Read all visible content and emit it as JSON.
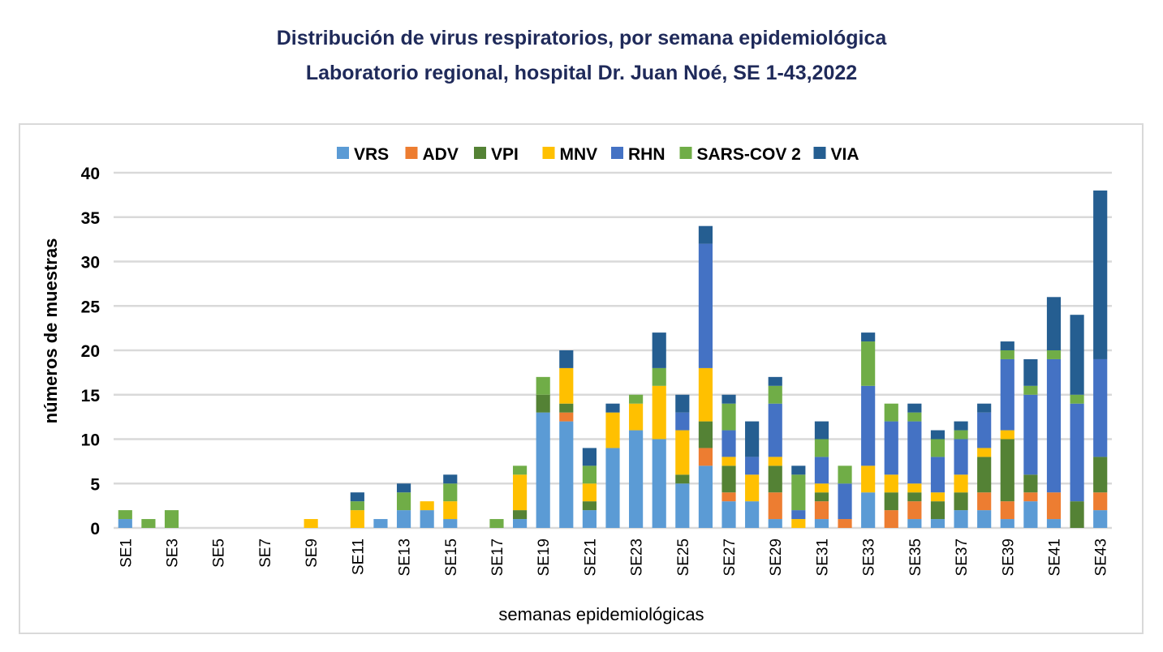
{
  "chart_data": {
    "type": "bar",
    "stacked": true,
    "title": "Distribución de virus respiratorios, por semana epidemiológica",
    "subtitle": "Laboratorio regional, hospital Dr. Juan Noé, SE 1-43,2022",
    "xlabel": "semanas epidemiológicas",
    "ylabel": "números de muestras",
    "ylim": [
      0,
      40
    ],
    "yticks": [
      0,
      5,
      10,
      15,
      20,
      25,
      30,
      35,
      40
    ],
    "grid": true,
    "legend_position": "top",
    "categories": [
      "SE1",
      "SE2",
      "SE3",
      "SE4",
      "SE5",
      "SE6",
      "SE7",
      "SE8",
      "SE9",
      "SE10",
      "SE11",
      "SE12",
      "SE13",
      "SE14",
      "SE15",
      "SE16",
      "SE17",
      "SE18",
      "SE19",
      "SE20",
      "SE21",
      "SE22",
      "SE23",
      "SE24",
      "SE25",
      "SE26",
      "SE27",
      "SE28",
      "SE29",
      "SE30",
      "SE31",
      "SE32",
      "SE33",
      "SE34",
      "SE35",
      "SE36",
      "SE37",
      "SE38",
      "SE39",
      "SE40",
      "SE41",
      "SE42",
      "SE43"
    ],
    "series": [
      {
        "name": "VRS",
        "color": "#5b9bd5",
        "values": [
          1,
          0,
          0,
          0,
          0,
          0,
          0,
          0,
          0,
          0,
          0,
          1,
          2,
          2,
          1,
          0,
          0,
          1,
          13,
          12,
          2,
          9,
          11,
          10,
          5,
          7,
          3,
          3,
          1,
          0,
          1,
          0,
          4,
          0,
          1,
          1,
          2,
          2,
          1,
          3,
          1,
          0,
          2
        ]
      },
      {
        "name": "ADV",
        "color": "#ed7d31",
        "values": [
          0,
          0,
          0,
          0,
          0,
          0,
          0,
          0,
          0,
          0,
          0,
          0,
          0,
          0,
          0,
          0,
          0,
          0,
          0,
          1,
          0,
          0,
          0,
          0,
          0,
          2,
          1,
          0,
          3,
          0,
          2,
          1,
          0,
          2,
          2,
          0,
          0,
          2,
          2,
          1,
          3,
          0,
          2
        ]
      },
      {
        "name": "VPI",
        "color": "#548235",
        "values": [
          0,
          0,
          0,
          0,
          0,
          0,
          0,
          0,
          0,
          0,
          0,
          0,
          0,
          0,
          0,
          0,
          0,
          1,
          2,
          1,
          1,
          0,
          0,
          0,
          1,
          3,
          3,
          0,
          3,
          0,
          1,
          0,
          0,
          2,
          1,
          2,
          2,
          4,
          7,
          2,
          0,
          3,
          4
        ]
      },
      {
        "name": "MNV",
        "color": "#ffc000",
        "values": [
          0,
          0,
          0,
          0,
          0,
          0,
          0,
          0,
          1,
          0,
          2,
          0,
          0,
          1,
          2,
          0,
          0,
          4,
          0,
          4,
          2,
          4,
          3,
          6,
          5,
          6,
          1,
          3,
          1,
          1,
          1,
          0,
          3,
          2,
          1,
          1,
          2,
          1,
          1,
          0,
          0,
          0,
          0
        ]
      },
      {
        "name": "RHN",
        "color": "#4472c4",
        "values": [
          0,
          0,
          0,
          0,
          0,
          0,
          0,
          0,
          0,
          0,
          0,
          0,
          0,
          0,
          0,
          0,
          0,
          0,
          0,
          0,
          0,
          0,
          0,
          0,
          2,
          14,
          3,
          2,
          6,
          1,
          3,
          4,
          9,
          6,
          7,
          4,
          4,
          4,
          8,
          9,
          15,
          11,
          11
        ]
      },
      {
        "name": "SARS-COV 2",
        "color": "#70ad47",
        "values": [
          1,
          1,
          2,
          0,
          0,
          0,
          0,
          0,
          0,
          0,
          1,
          0,
          2,
          0,
          2,
          0,
          1,
          1,
          2,
          0,
          2,
          0,
          1,
          2,
          0,
          0,
          3,
          0,
          2,
          4,
          2,
          2,
          5,
          2,
          1,
          2,
          1,
          0,
          1,
          1,
          1,
          1,
          0
        ]
      },
      {
        "name": "VIA",
        "color": "#255e91",
        "values": [
          0,
          0,
          0,
          0,
          0,
          0,
          0,
          0,
          0,
          0,
          1,
          0,
          1,
          0,
          1,
          0,
          0,
          0,
          0,
          2,
          2,
          1,
          0,
          4,
          2,
          2,
          1,
          4,
          1,
          1,
          2,
          0,
          1,
          0,
          1,
          1,
          1,
          1,
          1,
          3,
          6,
          9,
          19
        ]
      }
    ]
  }
}
